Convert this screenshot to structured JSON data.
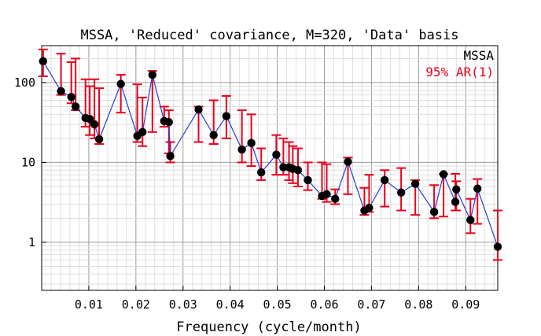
{
  "chart_data": {
    "type": "scatter",
    "title": "MSSA, 'Reduced' covariance, M=320, 'Data' basis",
    "xlabel": "Frequency (cycle/month)",
    "ylabel": "",
    "xlim": [
      0,
      0.0968
    ],
    "ylim": [
      0.25,
      290
    ],
    "ylog": true,
    "grid": true,
    "legend_position": "top-right",
    "x_tick_labels": [
      "0.01",
      "0.02",
      "0.03",
      "0.04",
      "0.05",
      "0.06",
      "0.07",
      "0.08",
      "0.09"
    ],
    "x_ticks": [
      0.01,
      0.02,
      0.03,
      0.04,
      0.05,
      0.06,
      0.07,
      0.08,
      0.09
    ],
    "y_tick_labels": [
      "1",
      "10",
      "100"
    ],
    "y_ticks": [
      1,
      10,
      100
    ],
    "legend": [
      {
        "label": "MSSA",
        "color": "#000000"
      },
      {
        "label": "95% AR(1)",
        "color": "#e8001c"
      }
    ],
    "colors": {
      "line": "#1f3fd6",
      "marker": "#000000",
      "errorbar": "#e8001c"
    },
    "series": [
      {
        "name": "MSSA",
        "x": [
          0.0003,
          0.0041,
          0.0063,
          0.0072,
          0.0093,
          0.0102,
          0.0112,
          0.0122,
          0.0168,
          0.0203,
          0.0214,
          0.0235,
          0.026,
          0.027,
          0.0273,
          0.0333,
          0.0365,
          0.0392,
          0.0425,
          0.0445,
          0.0466,
          0.0498,
          0.0513,
          0.0525,
          0.0533,
          0.0544,
          0.0565,
          0.0595,
          0.0605,
          0.0623,
          0.065,
          0.0685,
          0.0695,
          0.0728,
          0.0763,
          0.0793,
          0.0833,
          0.0853,
          0.0878,
          0.088,
          0.091,
          0.0925,
          0.0968
        ],
        "y": [
          185,
          78,
          66,
          50,
          36,
          35,
          30,
          19.5,
          96,
          21.5,
          24,
          125,
          33,
          32,
          12,
          46,
          22,
          38,
          14.5,
          17.5,
          7.5,
          12.5,
          8.7,
          8.7,
          8.3,
          8.0,
          6.0,
          3.8,
          4.0,
          3.5,
          10.2,
          2.5,
          2.7,
          6.0,
          4.2,
          5.4,
          2.4,
          7.1,
          3.2,
          4.6,
          1.9,
          4.7,
          0.88
        ]
      },
      {
        "name": "95% AR(1)",
        "x": [
          0.0003,
          0.0041,
          0.0063,
          0.0072,
          0.0093,
          0.0102,
          0.0112,
          0.0122,
          0.0168,
          0.0203,
          0.0214,
          0.0235,
          0.026,
          0.027,
          0.0273,
          0.0333,
          0.0365,
          0.0392,
          0.0425,
          0.0445,
          0.0466,
          0.0498,
          0.0513,
          0.0525,
          0.0533,
          0.0544,
          0.0565,
          0.0595,
          0.0605,
          0.0623,
          0.065,
          0.0685,
          0.0695,
          0.0728,
          0.0763,
          0.0793,
          0.0833,
          0.0853,
          0.0878,
          0.088,
          0.091,
          0.0925,
          0.0968
        ],
        "low": [
          120,
          70,
          55,
          45,
          28,
          22,
          20,
          17,
          42,
          18,
          16,
          24,
          28,
          13,
          10,
          18,
          17,
          20,
          10,
          9,
          6,
          7,
          7,
          6,
          5.5,
          5,
          4.5,
          3.5,
          3.2,
          3.0,
          4.0,
          2.2,
          2.4,
          2.8,
          2.5,
          2.2,
          2.0,
          2.1,
          2.5,
          2.5,
          1.3,
          1.7,
          0.6
        ],
        "high": [
          260,
          230,
          180,
          200,
          110,
          90,
          110,
          85,
          125,
          95,
          65,
          140,
          50,
          45,
          18,
          50,
          60,
          68,
          45,
          40,
          15,
          22,
          20,
          18,
          16,
          15,
          10,
          10,
          9.5,
          4.6,
          11.5,
          4.8,
          7.0,
          8.0,
          8.5,
          6.0,
          5.2,
          7.2,
          7.2,
          5.8,
          3.5,
          6.2,
          2.5
        ]
      }
    ]
  }
}
